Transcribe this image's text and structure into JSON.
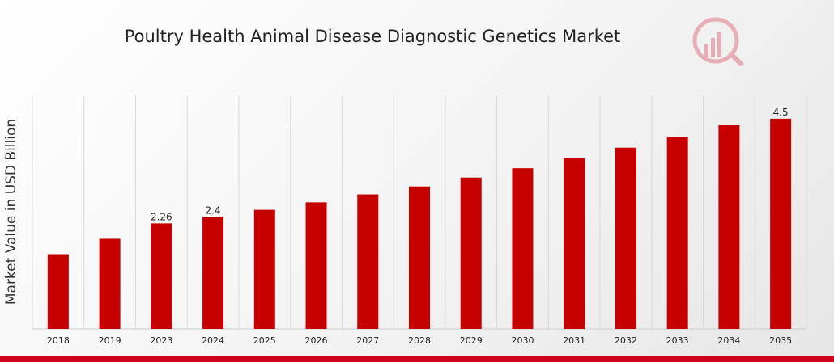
{
  "chart_data": {
    "type": "bar",
    "title": "Poultry Health Animal Disease Diagnostic Genetics Market",
    "xlabel": "",
    "ylabel": "Market Value in USD Billion",
    "categories": [
      "2018",
      "2019",
      "2023",
      "2024",
      "2025",
      "2026",
      "2027",
      "2028",
      "2029",
      "2030",
      "2031",
      "2032",
      "2033",
      "2034",
      "2035"
    ],
    "values": [
      1.6,
      1.93,
      2.26,
      2.4,
      2.55,
      2.71,
      2.88,
      3.05,
      3.24,
      3.44,
      3.65,
      3.88,
      4.11,
      4.36,
      4.5
    ],
    "data_labels": [
      "",
      "",
      "2.26",
      "2.4",
      "",
      "",
      "",
      "",
      "",
      "",
      "",
      "",
      "",
      "",
      "4.5"
    ],
    "ylim": [
      0,
      5
    ],
    "grid": "vertical",
    "legend": "none",
    "bar_color": "#c60000",
    "band_color": "#d0021b"
  },
  "logo": {
    "icon": "market-research-logo-icon",
    "color": "#d0021b"
  }
}
